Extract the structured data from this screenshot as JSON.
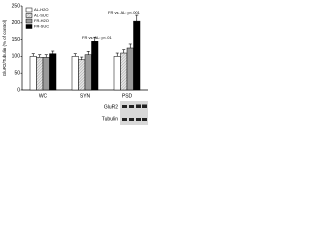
{
  "chart_data": {
    "type": "bar",
    "y_label": "GluR2/Tubulin (% of control)",
    "categories": [
      "WC",
      "SYN",
      "PSD"
    ],
    "series": [
      {
        "name": "AL-H2O",
        "color": "#ffffff",
        "values": [
          100,
          100,
          100
        ],
        "errors": [
          8,
          8,
          10
        ]
      },
      {
        "name": "AL-SUC",
        "color": "#d9d9d9",
        "pattern": "hatch",
        "values": [
          97,
          90,
          110
        ],
        "errors": [
          8,
          8,
          10
        ]
      },
      {
        "name": "FR-H2O",
        "color": "#9a9a9a",
        "values": [
          97,
          105,
          125
        ],
        "errors": [
          8,
          10,
          12
        ]
      },
      {
        "name": "FR-SUC",
        "color": "#000000",
        "values": [
          108,
          145,
          205
        ],
        "errors": [
          8,
          12,
          18
        ]
      }
    ],
    "annotations": [
      "FR vs. AL: p<.01",
      "FR vs. AL: p<.001"
    ],
    "blot_labels": [
      "GluR2",
      "Tubulin"
    ],
    "ylim": [
      0,
      250
    ],
    "yticks": [
      0,
      50,
      100,
      150,
      200,
      250
    ]
  }
}
